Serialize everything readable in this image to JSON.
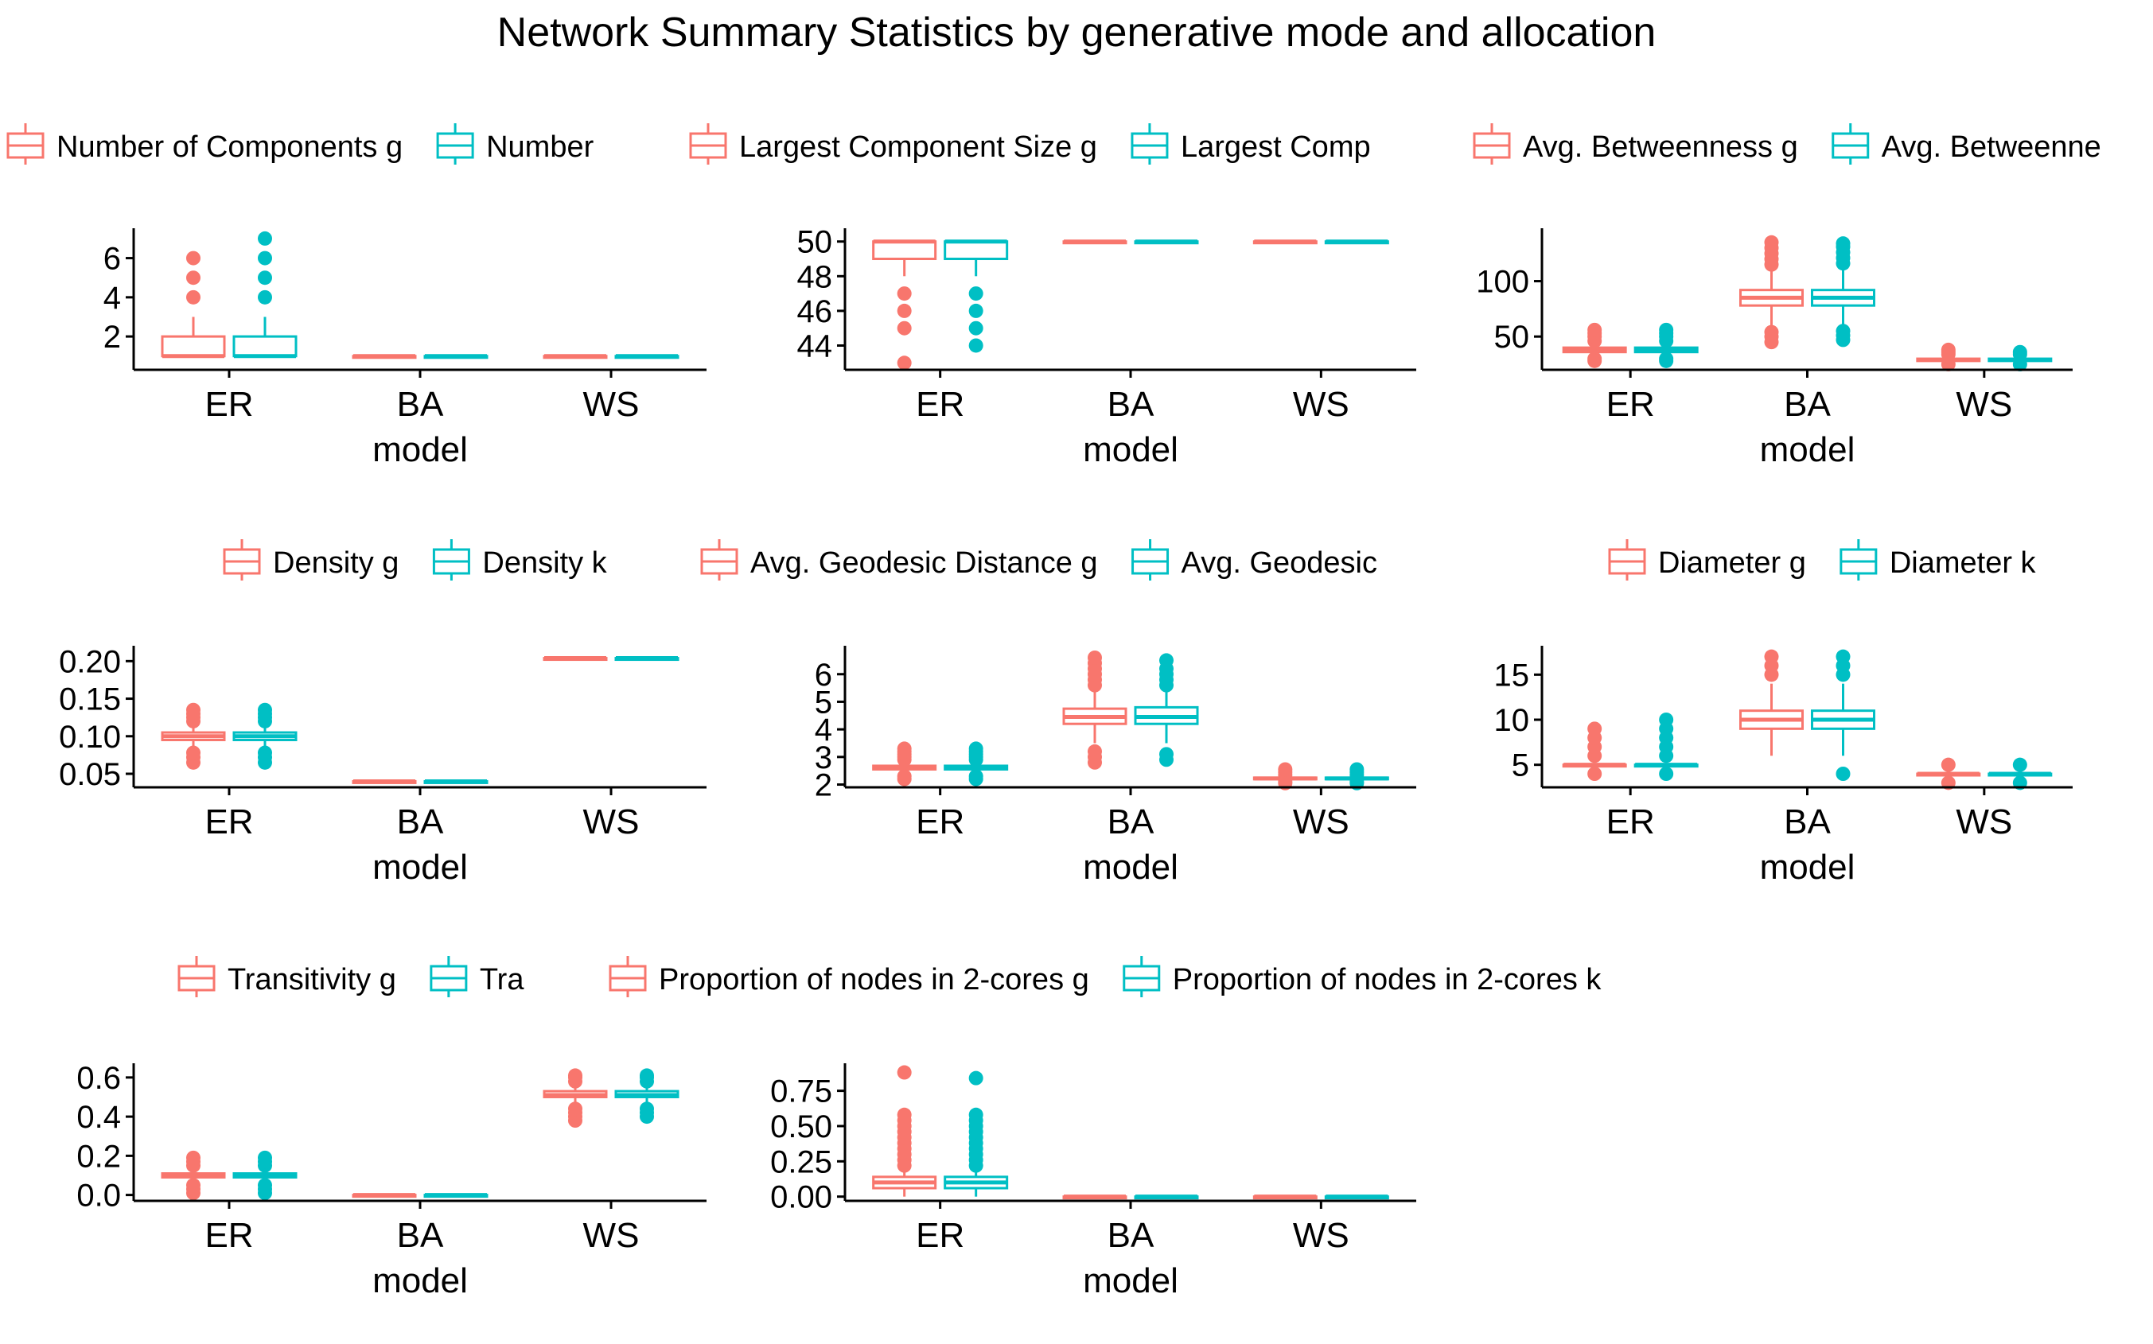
{
  "title": "Network Summary Statistics by generative mode and allocation",
  "colors": {
    "g": "#F8766D",
    "k": "#00BFC4",
    "axis": "#000000"
  },
  "chart_data": [
    {
      "type": "box",
      "xlabel": "model",
      "categories": [
        "ER",
        "BA",
        "WS"
      ],
      "ylim": [
        0.3,
        7.2
      ],
      "yticks": [
        {
          "v": 2,
          "label": "2"
        },
        {
          "v": 4,
          "label": "4"
        },
        {
          "v": 6,
          "label": "6"
        }
      ],
      "legend": [
        "Number of Components g",
        "Number"
      ],
      "series": [
        {
          "color": "g",
          "boxes": [
            {
              "min": 1,
              "q1": 1,
              "median": 1,
              "q3": 2,
              "max": 3,
              "outliers": [
                4,
                5,
                6
              ]
            },
            {
              "min": 1,
              "q1": 1,
              "median": 1,
              "q3": 1,
              "max": 1,
              "outliers": []
            },
            {
              "min": 1,
              "q1": 1,
              "median": 1,
              "q3": 1,
              "max": 1,
              "outliers": []
            }
          ]
        },
        {
          "color": "k",
          "boxes": [
            {
              "min": 1,
              "q1": 1,
              "median": 1,
              "q3": 2,
              "max": 3,
              "outliers": [
                4,
                5,
                6,
                7
              ]
            },
            {
              "min": 1,
              "q1": 1,
              "median": 1,
              "q3": 1,
              "max": 1,
              "outliers": []
            },
            {
              "min": 1,
              "q1": 1,
              "median": 1,
              "q3": 1,
              "max": 1,
              "outliers": []
            }
          ]
        }
      ]
    },
    {
      "type": "box",
      "xlabel": "model",
      "categories": [
        "ER",
        "BA",
        "WS"
      ],
      "ylim": [
        42.6,
        50.4
      ],
      "yticks": [
        {
          "v": 44,
          "label": "44"
        },
        {
          "v": 46,
          "label": "46"
        },
        {
          "v": 48,
          "label": "48"
        },
        {
          "v": 50,
          "label": "50"
        }
      ],
      "legend": [
        "Largest Component Size g",
        "Largest Comp"
      ],
      "series": [
        {
          "color": "g",
          "boxes": [
            {
              "min": 48,
              "q1": 49,
              "median": 50,
              "q3": 50,
              "max": 50,
              "outliers": [
                43,
                45,
                46,
                47
              ]
            },
            {
              "min": 50,
              "q1": 50,
              "median": 50,
              "q3": 50,
              "max": 50,
              "outliers": []
            },
            {
              "min": 50,
              "q1": 50,
              "median": 50,
              "q3": 50,
              "max": 50,
              "outliers": []
            }
          ]
        },
        {
          "color": "k",
          "boxes": [
            {
              "min": 48,
              "q1": 49,
              "median": 50,
              "q3": 50,
              "max": 50,
              "outliers": [
                44,
                45,
                46,
                47
              ]
            },
            {
              "min": 50,
              "q1": 50,
              "median": 50,
              "q3": 50,
              "max": 50,
              "outliers": []
            },
            {
              "min": 50,
              "q1": 50,
              "median": 50,
              "q3": 50,
              "max": 50,
              "outliers": []
            }
          ]
        }
      ]
    },
    {
      "type": "box",
      "xlabel": "model",
      "categories": [
        "ER",
        "BA",
        "WS"
      ],
      "ylim": [
        20,
        142
      ],
      "yticks": [
        {
          "v": 50,
          "label": "50"
        },
        {
          "v": 100,
          "label": "100"
        }
      ],
      "legend": [
        "Avg. Betweenness g",
        "Avg. Betweenne"
      ],
      "series": [
        {
          "color": "g",
          "boxes": [
            {
              "min": 32,
              "q1": 36,
              "median": 38,
              "q3": 40,
              "max": 44,
              "outliers": [
                28,
                30,
                46,
                50,
                53,
                56
              ]
            },
            {
              "min": 58,
              "q1": 78,
              "median": 85,
              "q3": 92,
              "max": 112,
              "outliers": [
                45,
                50,
                54,
                115,
                120,
                125,
                130,
                135
              ]
            },
            {
              "min": 27,
              "q1": 28,
              "median": 29,
              "q3": 30,
              "max": 32,
              "outliers": [
                25,
                34,
                36,
                38
              ]
            }
          ]
        },
        {
          "color": "k",
          "boxes": [
            {
              "min": 32,
              "q1": 36,
              "median": 38,
              "q3": 40,
              "max": 44,
              "outliers": [
                28,
                30,
                46,
                50,
                53,
                56
              ]
            },
            {
              "min": 58,
              "q1": 78,
              "median": 85,
              "q3": 92,
              "max": 112,
              "outliers": [
                47,
                51,
                55,
                116,
                121,
                126,
                131,
                134
              ]
            },
            {
              "min": 27,
              "q1": 28,
              "median": 29,
              "q3": 30,
              "max": 32,
              "outliers": [
                25,
                34,
                36
              ]
            }
          ]
        }
      ]
    },
    {
      "type": "box",
      "xlabel": "model",
      "categories": [
        "ER",
        "BA",
        "WS"
      ],
      "ylim": [
        0.032,
        0.212
      ],
      "yticks": [
        {
          "v": 0.05,
          "label": "0.05"
        },
        {
          "v": 0.1,
          "label": "0.10"
        },
        {
          "v": 0.15,
          "label": "0.15"
        },
        {
          "v": 0.2,
          "label": "0.20"
        }
      ],
      "legend": [
        "Density g",
        "Density k"
      ],
      "series": [
        {
          "color": "g",
          "boxes": [
            {
              "min": 0.085,
              "q1": 0.095,
              "median": 0.1,
              "q3": 0.105,
              "max": 0.115,
              "outliers": [
                0.065,
                0.072,
                0.078,
                0.12,
                0.125,
                0.13,
                0.135
              ]
            },
            {
              "min": 0.04,
              "q1": 0.04,
              "median": 0.04,
              "q3": 0.04,
              "max": 0.04,
              "outliers": []
            },
            {
              "min": 0.204,
              "q1": 0.204,
              "median": 0.204,
              "q3": 0.204,
              "max": 0.204,
              "outliers": []
            }
          ]
        },
        {
          "color": "k",
          "boxes": [
            {
              "min": 0.085,
              "q1": 0.095,
              "median": 0.1,
              "q3": 0.105,
              "max": 0.115,
              "outliers": [
                0.065,
                0.072,
                0.078,
                0.12,
                0.125,
                0.13,
                0.135
              ]
            },
            {
              "min": 0.04,
              "q1": 0.04,
              "median": 0.04,
              "q3": 0.04,
              "max": 0.04,
              "outliers": []
            },
            {
              "min": 0.204,
              "q1": 0.204,
              "median": 0.204,
              "q3": 0.204,
              "max": 0.204,
              "outliers": []
            }
          ]
        }
      ]
    },
    {
      "type": "box",
      "xlabel": "model",
      "categories": [
        "ER",
        "BA",
        "WS"
      ],
      "ylim": [
        1.9,
        6.8
      ],
      "yticks": [
        {
          "v": 2,
          "label": "2"
        },
        {
          "v": 3,
          "label": "3"
        },
        {
          "v": 4,
          "label": "4"
        },
        {
          "v": 5,
          "label": "5"
        },
        {
          "v": 6,
          "label": "6"
        }
      ],
      "legend": [
        "Avg. Geodesic Distance g",
        "Avg. Geodesic"
      ],
      "series": [
        {
          "color": "g",
          "boxes": [
            {
              "min": 2.45,
              "q1": 2.55,
              "median": 2.6,
              "q3": 2.68,
              "max": 2.85,
              "outliers": [
                2.2,
                2.3,
                2.9,
                3.0,
                3.1,
                3.2,
                3.3
              ]
            },
            {
              "min": 3.5,
              "q1": 4.2,
              "median": 4.45,
              "q3": 4.75,
              "max": 5.5,
              "outliers": [
                2.8,
                3.0,
                3.2,
                5.6,
                5.8,
                6.0,
                6.2,
                6.4,
                6.6
              ]
            },
            {
              "min": 2.15,
              "q1": 2.2,
              "median": 2.22,
              "q3": 2.25,
              "max": 2.3,
              "outliers": [
                2.05,
                2.1,
                2.35,
                2.45,
                2.55
              ]
            }
          ]
        },
        {
          "color": "k",
          "boxes": [
            {
              "min": 2.45,
              "q1": 2.55,
              "median": 2.6,
              "q3": 2.68,
              "max": 2.85,
              "outliers": [
                2.2,
                2.3,
                2.9,
                3.0,
                3.1,
                3.2,
                3.3
              ]
            },
            {
              "min": 3.5,
              "q1": 4.2,
              "median": 4.45,
              "q3": 4.8,
              "max": 5.5,
              "outliers": [
                2.9,
                3.1,
                5.6,
                5.8,
                6.0,
                6.2,
                6.5
              ]
            },
            {
              "min": 2.15,
              "q1": 2.2,
              "median": 2.22,
              "q3": 2.25,
              "max": 2.3,
              "outliers": [
                2.05,
                2.1,
                2.35,
                2.45,
                2.55
              ]
            }
          ]
        }
      ]
    },
    {
      "type": "box",
      "xlabel": "model",
      "categories": [
        "ER",
        "BA",
        "WS"
      ],
      "ylim": [
        2.5,
        17.5
      ],
      "yticks": [
        {
          "v": 5,
          "label": "5"
        },
        {
          "v": 10,
          "label": "10"
        },
        {
          "v": 15,
          "label": "15"
        }
      ],
      "legend": [
        "Diameter g",
        "Diameter k"
      ],
      "series": [
        {
          "color": "g",
          "boxes": [
            {
              "min": 5,
              "q1": 5,
              "median": 5,
              "q3": 5,
              "max": 5,
              "outliers": [
                4,
                6,
                7,
                8,
                9
              ]
            },
            {
              "min": 6,
              "q1": 9,
              "median": 10,
              "q3": 11,
              "max": 14,
              "outliers": [
                15,
                16,
                17
              ]
            },
            {
              "min": 4,
              "q1": 4,
              "median": 4,
              "q3": 4,
              "max": 4,
              "outliers": [
                3,
                5
              ]
            }
          ]
        },
        {
          "color": "k",
          "boxes": [
            {
              "min": 5,
              "q1": 5,
              "median": 5,
              "q3": 5,
              "max": 5,
              "outliers": [
                4,
                6,
                7,
                8,
                9,
                10
              ]
            },
            {
              "min": 6,
              "q1": 9,
              "median": 10,
              "q3": 11,
              "max": 14,
              "outliers": [
                4,
                15,
                16,
                17
              ]
            },
            {
              "min": 4,
              "q1": 4,
              "median": 4,
              "q3": 4,
              "max": 4,
              "outliers": [
                3,
                5
              ]
            }
          ]
        }
      ]
    },
    {
      "type": "box",
      "xlabel": "model",
      "categories": [
        "ER",
        "BA",
        "WS"
      ],
      "ylim": [
        -0.03,
        0.64
      ],
      "yticks": [
        {
          "v": 0.0,
          "label": "0.0"
        },
        {
          "v": 0.2,
          "label": "0.2"
        },
        {
          "v": 0.4,
          "label": "0.4"
        },
        {
          "v": 0.6,
          "label": "0.6"
        }
      ],
      "legend": [
        "Transitivity g",
        "Tra"
      ],
      "series": [
        {
          "color": "g",
          "boxes": [
            {
              "min": 0.06,
              "q1": 0.09,
              "median": 0.1,
              "q3": 0.11,
              "max": 0.14,
              "outliers": [
                0.01,
                0.03,
                0.05,
                0.15,
                0.17,
                0.19
              ]
            },
            {
              "min": 0.0,
              "q1": 0.0,
              "median": 0.0,
              "q3": 0.0,
              "max": 0.0,
              "outliers": []
            },
            {
              "min": 0.46,
              "q1": 0.5,
              "median": 0.51,
              "q3": 0.53,
              "max": 0.56,
              "outliers": [
                0.38,
                0.4,
                0.42,
                0.44,
                0.58,
                0.6,
                0.61
              ]
            }
          ]
        },
        {
          "color": "k",
          "boxes": [
            {
              "min": 0.06,
              "q1": 0.09,
              "median": 0.1,
              "q3": 0.11,
              "max": 0.14,
              "outliers": [
                0.01,
                0.03,
                0.05,
                0.15,
                0.17,
                0.19
              ]
            },
            {
              "min": 0.0,
              "q1": 0.0,
              "median": 0.0,
              "q3": 0.0,
              "max": 0.0,
              "outliers": []
            },
            {
              "min": 0.46,
              "q1": 0.5,
              "median": 0.51,
              "q3": 0.53,
              "max": 0.56,
              "outliers": [
                0.4,
                0.42,
                0.44,
                0.58,
                0.6,
                0.61
              ]
            }
          ]
        }
      ]
    },
    {
      "type": "box",
      "xlabel": "model",
      "categories": [
        "ER",
        "BA",
        "WS"
      ],
      "ylim": [
        -0.03,
        0.9
      ],
      "yticks": [
        {
          "v": 0.0,
          "label": "0.00"
        },
        {
          "v": 0.25,
          "label": "0.25"
        },
        {
          "v": 0.5,
          "label": "0.50"
        },
        {
          "v": 0.75,
          "label": "0.75"
        }
      ],
      "legend": [
        "Proportion of nodes in 2-cores g",
        "Proportion of nodes in 2-cores k"
      ],
      "series": [
        {
          "color": "g",
          "boxes": [
            {
              "min": 0.0,
              "q1": 0.06,
              "median": 0.1,
              "q3": 0.14,
              "max": 0.2,
              "outliers": [
                0.22,
                0.26,
                0.3,
                0.34,
                0.38,
                0.42,
                0.46,
                0.5,
                0.54,
                0.58,
                0.88
              ]
            },
            {
              "min": 0.0,
              "q1": 0.0,
              "median": 0.0,
              "q3": 0.0,
              "max": 0.0,
              "outliers": []
            },
            {
              "min": 0.0,
              "q1": 0.0,
              "median": 0.0,
              "q3": 0.0,
              "max": 0.0,
              "outliers": []
            }
          ]
        },
        {
          "color": "k",
          "boxes": [
            {
              "min": 0.0,
              "q1": 0.06,
              "median": 0.1,
              "q3": 0.14,
              "max": 0.2,
              "outliers": [
                0.22,
                0.26,
                0.3,
                0.34,
                0.38,
                0.42,
                0.46,
                0.5,
                0.54,
                0.58,
                0.84
              ]
            },
            {
              "min": 0.0,
              "q1": 0.0,
              "median": 0.0,
              "q3": 0.0,
              "max": 0.0,
              "outliers": []
            },
            {
              "min": 0.0,
              "q1": 0.0,
              "median": 0.0,
              "q3": 0.0,
              "max": 0.0,
              "outliers": []
            }
          ]
        }
      ]
    }
  ]
}
